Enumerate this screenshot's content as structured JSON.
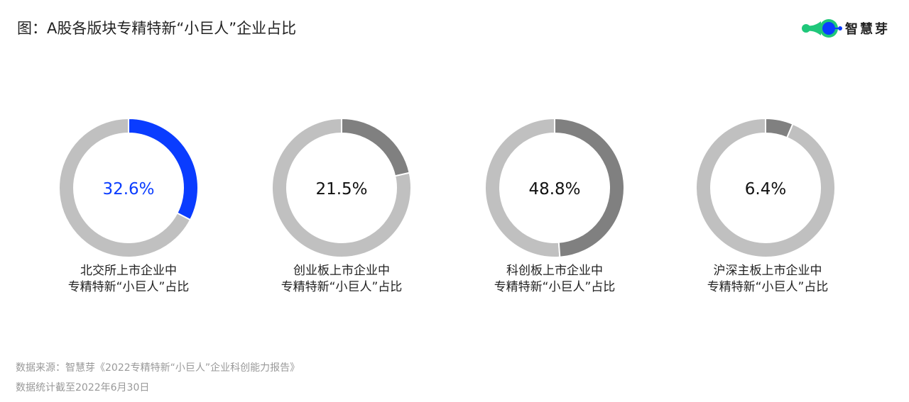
{
  "title": "图：A股各版块专精特新“小巨人”企业占比",
  "logo": {
    "text": "智慧芽",
    "colors": {
      "green": "#1fc77a",
      "blue": "#0a3cff"
    }
  },
  "chart_data": [
    {
      "type": "pie",
      "variant": "donut",
      "value": 32.6,
      "center_label": "32.6%",
      "label_line1": "北交所上市企业中",
      "label_line2": "专精特新“小巨人”占比",
      "color": "#0a3cff",
      "remainder_color": "#c0c0c0",
      "text_color": "#0a3cff"
    },
    {
      "type": "pie",
      "variant": "donut",
      "value": 21.5,
      "center_label": "21.5%",
      "label_line1": "创业板上市企业中",
      "label_line2": "专精特新“小巨人”占比",
      "color": "#808080",
      "remainder_color": "#c0c0c0",
      "text_color": "#111111"
    },
    {
      "type": "pie",
      "variant": "donut",
      "value": 48.8,
      "center_label": "48.8%",
      "label_line1": "科创板上市企业中",
      "label_line2": "专精特新“小巨人”占比",
      "color": "#808080",
      "remainder_color": "#c0c0c0",
      "text_color": "#111111"
    },
    {
      "type": "pie",
      "variant": "donut",
      "value": 6.4,
      "center_label": "6.4%",
      "label_line1": "沪深主板上市企业中",
      "label_line2": "专精特新“小巨人”占比",
      "color": "#808080",
      "remainder_color": "#c0c0c0",
      "text_color": "#111111"
    }
  ],
  "footer": {
    "source": "数据来源：智慧芽《2022专精特新“小巨人”企业科创能力报告》",
    "date_note": "数据统计截至2022年6月30日"
  }
}
